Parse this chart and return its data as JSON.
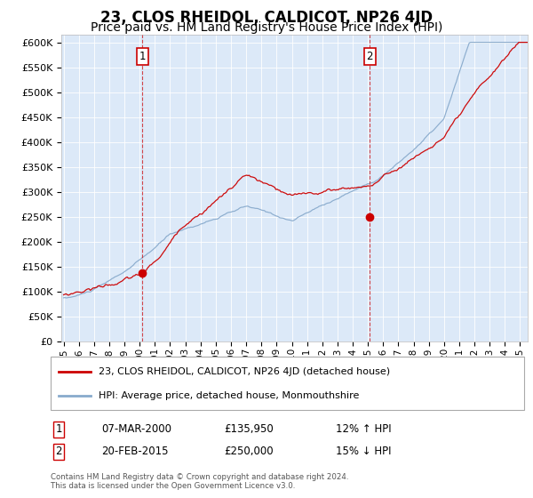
{
  "title": "23, CLOS RHEIDOL, CALDICOT, NP26 4JD",
  "subtitle": "Price paid vs. HM Land Registry's House Price Index (HPI)",
  "legend_line1": "23, CLOS RHEIDOL, CALDICOT, NP26 4JD (detached house)",
  "legend_line2": "HPI: Average price, detached house, Monmouthshire",
  "annotation1_date": "07-MAR-2000",
  "annotation1_price": "£135,950",
  "annotation1_hpi": "12% ↑ HPI",
  "annotation1_year": 2000.18,
  "annotation1_value": 135950,
  "annotation2_date": "20-FEB-2015",
  "annotation2_price": "£250,000",
  "annotation2_hpi": "15% ↓ HPI",
  "annotation2_year": 2015.13,
  "annotation2_value": 250000,
  "footer": "Contains HM Land Registry data © Crown copyright and database right 2024.\nThis data is licensed under the Open Government Licence v3.0.",
  "yticks": [
    0,
    50000,
    100000,
    150000,
    200000,
    250000,
    300000,
    350000,
    400000,
    450000,
    500000,
    550000,
    600000
  ],
  "background_color": "#dce9f8",
  "red_color": "#cc0000",
  "blue_color": "#88aacc",
  "title_fontsize": 12,
  "subtitle_fontsize": 10,
  "tick_fontsize": 8
}
